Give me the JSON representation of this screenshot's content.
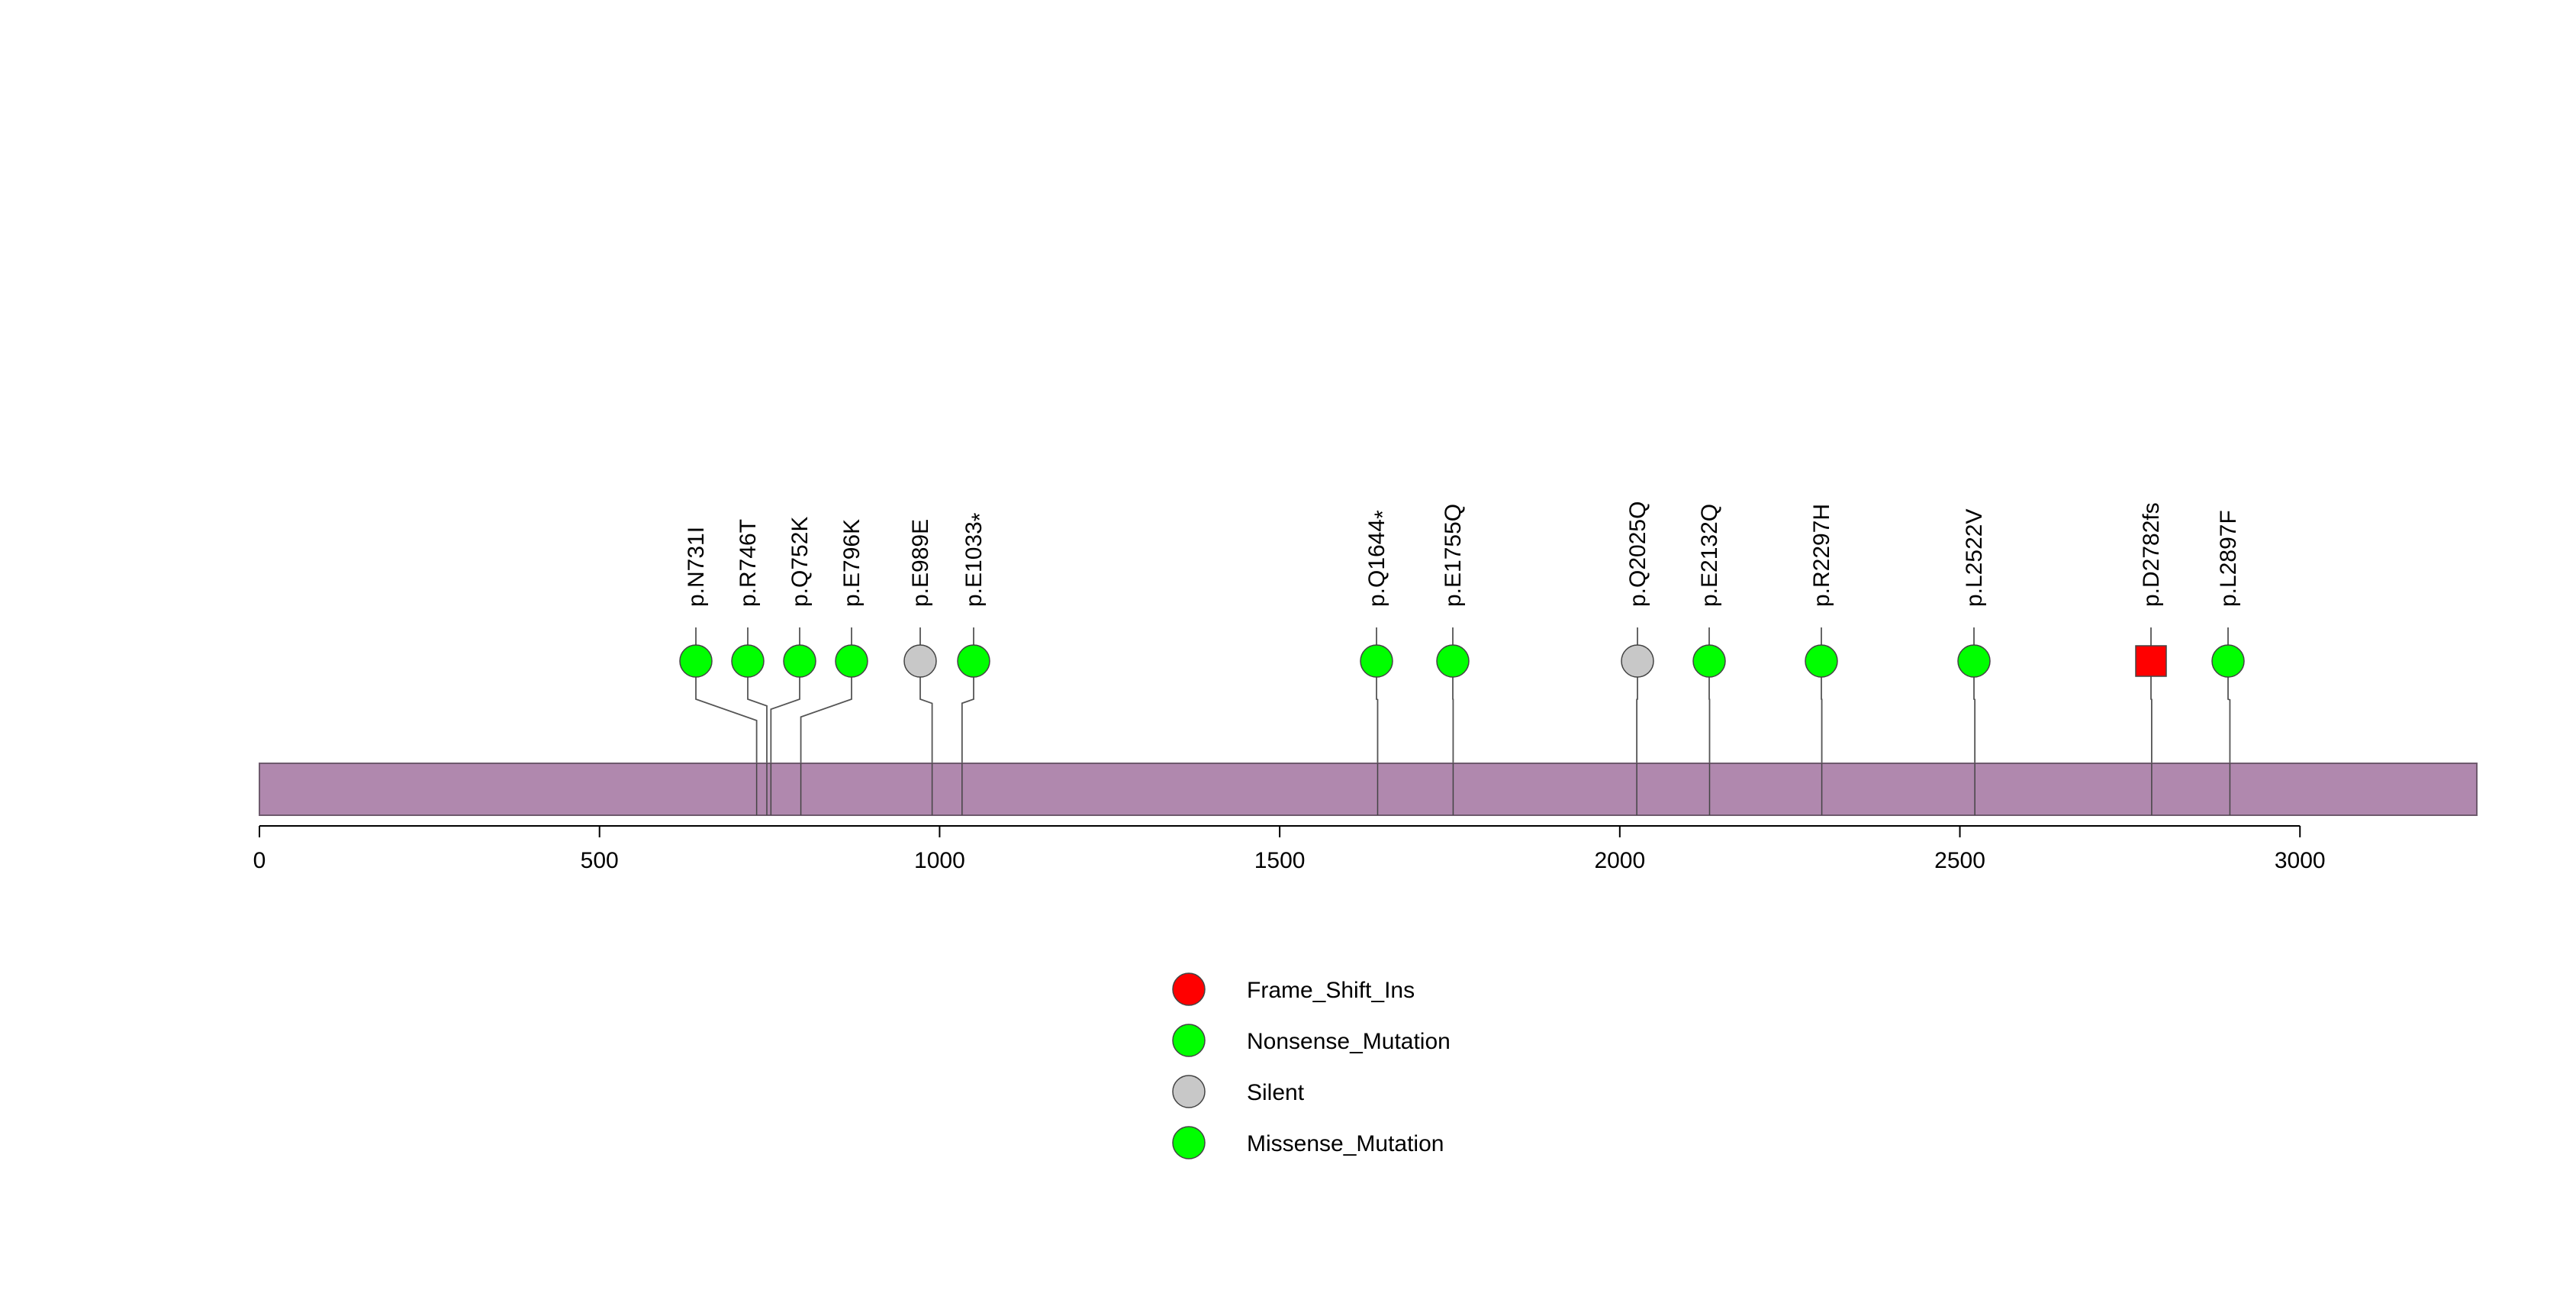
{
  "chart_data": {
    "type": "lollipop",
    "protein_length": 3260,
    "xlim": [
      0,
      3260
    ],
    "x_ticks": [
      0,
      500,
      1000,
      1500,
      2000,
      2500,
      3000
    ],
    "domain_color": "#B088AE",
    "mutations": [
      {
        "label": "p.N731I",
        "position": 731,
        "type": "Missense_Mutation",
        "shape": "circle",
        "color": "#00FF00"
      },
      {
        "label": "p.R746T",
        "position": 746,
        "type": "Missense_Mutation",
        "shape": "circle",
        "color": "#00FF00"
      },
      {
        "label": "p.Q752K",
        "position": 752,
        "type": "Missense_Mutation",
        "shape": "circle",
        "color": "#00FF00"
      },
      {
        "label": "p.E796K",
        "position": 796,
        "type": "Missense_Mutation",
        "shape": "circle",
        "color": "#00FF00"
      },
      {
        "label": "p.E989E",
        "position": 989,
        "type": "Silent",
        "shape": "circle",
        "color": "#C8C8C8"
      },
      {
        "label": "p.E1033",
        "suffix": "*",
        "position": 1033,
        "type": "Nonsense_Mutation",
        "shape": "circle",
        "color": "#00FF00"
      },
      {
        "label": "p.Q1644",
        "suffix": "*",
        "position": 1644,
        "type": "Nonsense_Mutation",
        "shape": "circle",
        "color": "#00FF00"
      },
      {
        "label": "p.E1755Q",
        "position": 1755,
        "type": "Missense_Mutation",
        "shape": "circle",
        "color": "#00FF00"
      },
      {
        "label": "p.Q2025Q",
        "position": 2025,
        "type": "Silent",
        "shape": "circle",
        "color": "#C8C8C8"
      },
      {
        "label": "p.E2132Q",
        "position": 2132,
        "type": "Missense_Mutation",
        "shape": "circle",
        "color": "#00FF00"
      },
      {
        "label": "p.R2297H",
        "position": 2297,
        "type": "Missense_Mutation",
        "shape": "circle",
        "color": "#00FF00"
      },
      {
        "label": "p.L2522V",
        "position": 2522,
        "type": "Missense_Mutation",
        "shape": "circle",
        "color": "#00FF00"
      },
      {
        "label": "p.D2782fs",
        "position": 2782,
        "type": "Frame_Shift_Ins",
        "shape": "square",
        "color": "#FF0000"
      },
      {
        "label": "p.L2897F",
        "position": 2897,
        "type": "Missense_Mutation",
        "shape": "circle",
        "color": "#00FF00"
      }
    ],
    "legend": [
      {
        "label": "Frame_Shift_Ins",
        "color": "#FF0000"
      },
      {
        "label": "Nonsense_Mutation",
        "color": "#00FF00"
      },
      {
        "label": "Silent",
        "color": "#C8C8C8"
      },
      {
        "label": "Missense_Mutation",
        "color": "#00FF00"
      }
    ]
  }
}
